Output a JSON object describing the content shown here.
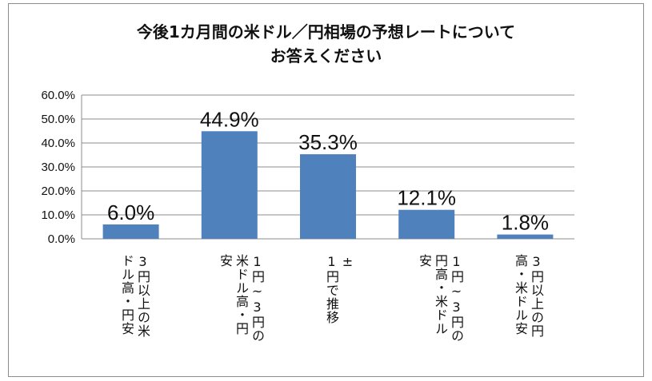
{
  "chart_data": {
    "type": "bar",
    "title": "今後1カ月間の米ドル／円相場の予想レートについて\nお答えください",
    "categories": [
      "3円以上の米\nドル高・円安",
      "1円~3円の\n米ドル高・円\n安",
      "±\n1円で推移",
      "1円~3円の\n円高・米ドル\n安",
      "3円以上の円\n高・米ドル安"
    ],
    "values": [
      6.0,
      44.9,
      35.3,
      12.1,
      1.8
    ],
    "value_labels": [
      "6.0%",
      "44.9%",
      "35.3%",
      "12.1%",
      "1.8%"
    ],
    "yticks": [
      "0.0%",
      "10.0%",
      "20.0%",
      "30.0%",
      "40.0%",
      "50.0%",
      "60.0%"
    ],
    "ylim": [
      0,
      60
    ],
    "xlabel": "",
    "ylabel": "",
    "colors": {
      "bar": "#4f81bd",
      "grid": "#8c8c8c"
    }
  }
}
